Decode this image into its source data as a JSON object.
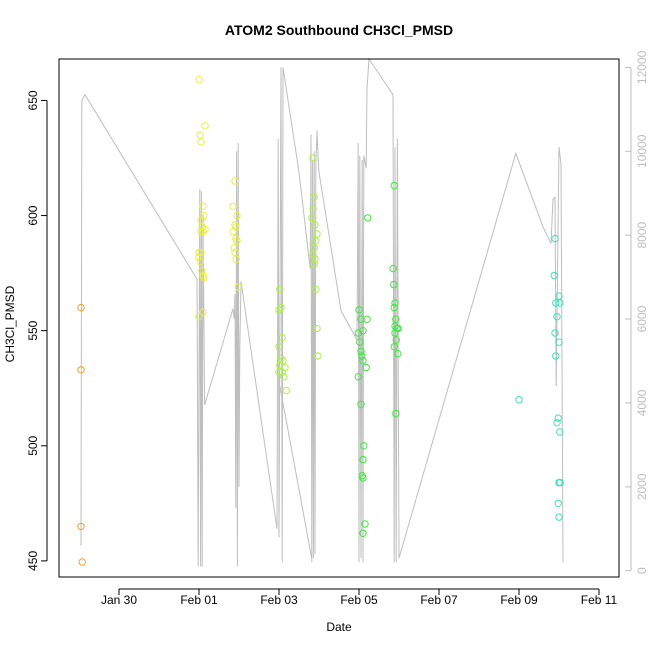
{
  "chart_data": {
    "type": "scatter",
    "title": "ATOM2 Southbound CH3Cl_PMSD",
    "xlabel": "Date",
    "ylabel": "CH3Cl_PMSD",
    "x_ticks": [
      "Jan 30",
      "Feb 01",
      "Feb 03",
      "Feb 05",
      "Feb 07",
      "Feb 09",
      "Feb 11"
    ],
    "x_tick_values": [
      -2,
      0,
      2,
      4,
      6,
      8,
      10
    ],
    "xlim": [
      -3.5,
      10.5
    ],
    "ylim": [
      443,
      668
    ],
    "y_ticks": [
      450,
      500,
      550,
      600,
      650
    ],
    "y2lim": [
      -150,
      12200
    ],
    "y2_ticks": [
      0,
      2000,
      4000,
      6000,
      8000,
      10000,
      12000
    ],
    "grid": false,
    "legend": "none",
    "colors": {
      "line": "#bebebe",
      "axis": "#000000",
      "box": "#000000"
    },
    "series": [
      {
        "color": "#f0a030",
        "points": [
          [
            -2.95,
            560
          ],
          [
            -2.95,
            533
          ],
          [
            -2.95,
            465
          ],
          [
            -2.92,
            449.5
          ]
        ]
      },
      {
        "color": "#e8f040",
        "points": [
          [
            0.0,
            659
          ],
          [
            0.03,
            635
          ],
          [
            0.05,
            632
          ],
          [
            0.15,
            639
          ],
          [
            0.1,
            604
          ],
          [
            0.12,
            600
          ],
          [
            0.05,
            598
          ],
          [
            0.08,
            595
          ],
          [
            0.1,
            593
          ],
          [
            0.0,
            582
          ],
          [
            0.03,
            580
          ],
          [
            0.07,
            576
          ],
          [
            0.1,
            574
          ],
          [
            0.12,
            573
          ],
          [
            0.0,
            584
          ],
          [
            0.05,
            584
          ],
          [
            0.1,
            558
          ],
          [
            0.0,
            556
          ],
          [
            0.05,
            593
          ],
          [
            0.15,
            594
          ],
          [
            0.9,
            615
          ],
          [
            0.85,
            604
          ],
          [
            0.95,
            600
          ],
          [
            0.9,
            596
          ],
          [
            0.85,
            593
          ],
          [
            0.92,
            595
          ],
          [
            0.95,
            589
          ],
          [
            0.88,
            586
          ],
          [
            0.9,
            584
          ],
          [
            0.93,
            581
          ],
          [
            0.98,
            569
          ],
          [
            0.92,
            590
          ]
        ]
      },
      {
        "color": "#b0f048",
        "points": [
          [
            2.02,
            568
          ],
          [
            2.05,
            560
          ],
          [
            2.0,
            559
          ],
          [
            2.08,
            547
          ],
          [
            2.0,
            543
          ],
          [
            2.05,
            538
          ],
          [
            2.1,
            537
          ],
          [
            2.02,
            535
          ],
          [
            2.0,
            532
          ],
          [
            2.08,
            532
          ],
          [
            2.12,
            530
          ],
          [
            2.15,
            534
          ],
          [
            2.18,
            524
          ],
          [
            2.85,
            625
          ],
          [
            2.88,
            608
          ],
          [
            2.85,
            603
          ],
          [
            2.82,
            599
          ],
          [
            2.9,
            596
          ],
          [
            2.95,
            592
          ],
          [
            2.92,
            589
          ],
          [
            2.88,
            586
          ],
          [
            2.85,
            583
          ],
          [
            2.9,
            581
          ],
          [
            2.88,
            579
          ],
          [
            2.92,
            568
          ],
          [
            2.95,
            551
          ],
          [
            2.97,
            539
          ]
        ]
      },
      {
        "color": "#40e840",
        "points": [
          [
            4.0,
            559
          ],
          [
            4.05,
            555
          ],
          [
            4.1,
            550
          ],
          [
            3.98,
            549
          ],
          [
            4.02,
            545
          ],
          [
            4.05,
            541
          ],
          [
            4.07,
            539
          ],
          [
            4.1,
            537
          ],
          [
            3.98,
            530
          ],
          [
            4.05,
            518
          ],
          [
            4.12,
            500
          ],
          [
            4.1,
            494
          ],
          [
            4.08,
            487
          ],
          [
            4.1,
            486
          ],
          [
            4.15,
            466
          ],
          [
            4.1,
            462
          ],
          [
            4.22,
            599
          ],
          [
            4.2,
            555
          ],
          [
            4.18,
            534
          ],
          [
            4.88,
            613
          ],
          [
            4.85,
            577
          ],
          [
            4.87,
            570
          ],
          [
            4.9,
            562
          ],
          [
            4.88,
            560
          ],
          [
            4.92,
            555
          ],
          [
            4.9,
            552
          ],
          [
            4.95,
            551
          ],
          [
            4.98,
            551
          ],
          [
            4.9,
            549
          ],
          [
            4.93,
            546
          ],
          [
            4.88,
            543
          ],
          [
            4.97,
            540
          ],
          [
            4.92,
            514
          ]
        ]
      },
      {
        "color": "#40e0b8",
        "points": [
          [
            8.0,
            520
          ],
          [
            8.9,
            590
          ],
          [
            8.88,
            574
          ],
          [
            8.92,
            562
          ],
          [
            9.0,
            565
          ],
          [
            8.95,
            556
          ],
          [
            9.02,
            562
          ],
          [
            8.9,
            549
          ],
          [
            9.0,
            545
          ],
          [
            8.92,
            539
          ],
          [
            8.98,
            512
          ],
          [
            8.95,
            510
          ],
          [
            9.02,
            506
          ],
          [
            9.0,
            484
          ],
          [
            9.03,
            484
          ],
          [
            8.98,
            475
          ],
          [
            9.0,
            469
          ],
          [
            9.0,
            484
          ]
        ]
      }
    ],
    "line_right_axis": [
      [
        -2.95,
        600
      ],
      [
        -2.93,
        11200
      ],
      [
        -2.85,
        11350
      ],
      [
        -0.05,
        6950
      ],
      [
        -0.02,
        100
      ],
      [
        0.02,
        9100
      ],
      [
        0.04,
        100
      ],
      [
        0.06,
        9050
      ],
      [
        0.08,
        100
      ],
      [
        0.1,
        8500
      ],
      [
        0.14,
        3950
      ],
      [
        0.85,
        6250
      ],
      [
        0.88,
        6000
      ],
      [
        0.9,
        6600
      ],
      [
        0.92,
        1500
      ],
      [
        0.94,
        10000
      ],
      [
        0.96,
        100
      ],
      [
        0.98,
        10200
      ],
      [
        1.0,
        2000
      ],
      [
        1.02,
        5300
      ],
      [
        1.05,
        6900
      ],
      [
        1.95,
        1000
      ],
      [
        1.98,
        10300
      ],
      [
        2.0,
        800
      ],
      [
        2.05,
        12000
      ],
      [
        2.08,
        200
      ],
      [
        2.1,
        12000
      ],
      [
        2.5,
        9500
      ],
      [
        2.78,
        7200
      ],
      [
        2.8,
        10400
      ],
      [
        2.82,
        200
      ],
      [
        2.84,
        9800
      ],
      [
        2.86,
        300
      ],
      [
        2.88,
        10000
      ],
      [
        2.9,
        400
      ],
      [
        2.92,
        9600
      ],
      [
        2.95,
        10500
      ],
      [
        2.98,
        9800
      ],
      [
        3.0,
        9500
      ],
      [
        3.55,
        6200
      ],
      [
        3.95,
        5500
      ],
      [
        3.98,
        10200
      ],
      [
        4.0,
        200
      ],
      [
        4.02,
        9900
      ],
      [
        4.05,
        300
      ],
      [
        4.08,
        9800
      ],
      [
        4.1,
        200
      ],
      [
        4.12,
        9900
      ],
      [
        4.18,
        9600
      ],
      [
        4.2,
        11500
      ],
      [
        4.25,
        12200
      ],
      [
        4.85,
        11350
      ],
      [
        4.88,
        200
      ],
      [
        4.9,
        10100
      ],
      [
        4.93,
        200
      ],
      [
        4.96,
        10300
      ],
      [
        5.0,
        300
      ],
      [
        7.92,
        9950
      ],
      [
        8.6,
        8200
      ],
      [
        8.8,
        7800
      ],
      [
        8.85,
        8850
      ],
      [
        8.9,
        8900
      ],
      [
        8.93,
        4400
      ],
      [
        9.0,
        10100
      ],
      [
        9.05,
        9700
      ],
      [
        9.1,
        200
      ]
    ],
    "line_left_axis_segment": [
      [
        2.02,
        526
      ],
      [
        2.82,
        451
      ]
    ]
  }
}
